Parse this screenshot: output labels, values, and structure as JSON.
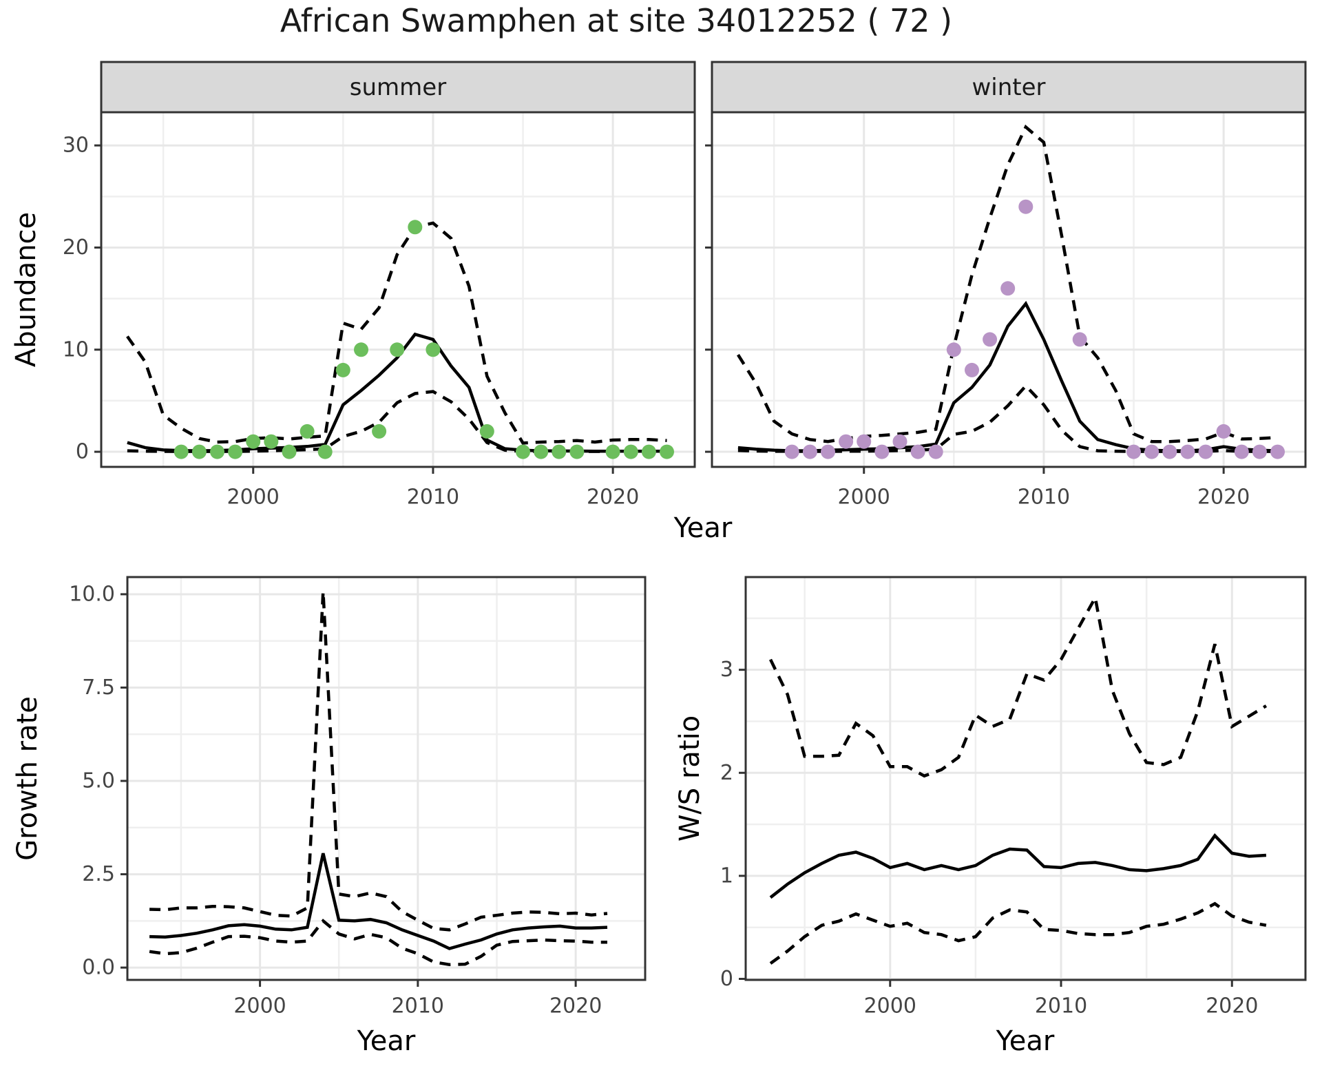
{
  "title": "African Swamphen at site 34012252 ( 72 )",
  "colors": {
    "summer_point": "#6CBE5C",
    "winter_point": "#B894C6",
    "line": "#000000",
    "grid_major": "#E7E7E7",
    "grid_minor": "#EFEFEF",
    "panel_border": "#333333",
    "strip_fill": "#D9D9D9",
    "tick_label": "#444444",
    "axis_title": "#000000"
  },
  "chart_data": [
    {
      "id": "abundance_summer",
      "type": "line",
      "strip_label": "summer",
      "xlabel": "Year",
      "ylabel": "Abundance",
      "x": [
        1993,
        1994,
        1995,
        1996,
        1997,
        1998,
        1999,
        2000,
        2001,
        2002,
        2003,
        2004,
        2005,
        2006,
        2007,
        2008,
        2009,
        2010,
        2011,
        2012,
        2013,
        2014,
        2015,
        2016,
        2017,
        2018,
        2019,
        2020,
        2021,
        2022,
        2023
      ],
      "series": [
        {
          "name": "fit",
          "style": "solid",
          "values": [
            0.9,
            0.4,
            0.18,
            0.12,
            0.1,
            0.12,
            0.18,
            0.3,
            0.36,
            0.42,
            0.52,
            0.72,
            4.6,
            6.0,
            7.5,
            9.2,
            11.5,
            11.0,
            8.4,
            6.3,
            1.15,
            0.3,
            0.15,
            0.1,
            0.08,
            0.07,
            0.06,
            0.06,
            0.06,
            0.06,
            0.06
          ]
        },
        {
          "name": "ci_upper",
          "style": "dashed",
          "values": [
            11.3,
            8.8,
            3.6,
            2.3,
            1.3,
            0.95,
            1.0,
            1.3,
            1.38,
            1.25,
            1.42,
            1.55,
            12.6,
            12.0,
            14.1,
            19.3,
            22.0,
            22.4,
            20.9,
            16.2,
            7.4,
            3.8,
            0.85,
            0.95,
            1.0,
            1.1,
            0.95,
            1.15,
            1.2,
            1.2,
            1.1
          ]
        },
        {
          "name": "ci_lower",
          "style": "dashed",
          "values": [
            0.1,
            0.06,
            0.04,
            0.03,
            0.03,
            0.03,
            0.04,
            0.06,
            0.1,
            0.15,
            0.2,
            0.3,
            1.5,
            2.0,
            2.9,
            4.8,
            5.7,
            5.9,
            4.9,
            3.2,
            0.9,
            0.15,
            0.04,
            0.03,
            0.03,
            0.03,
            0.03,
            0.03,
            0.03,
            0.03,
            0.03
          ]
        }
      ],
      "points": {
        "color_key": "summer_point",
        "years": [
          1996,
          1997,
          1998,
          1999,
          2000,
          2001,
          2002,
          2003,
          2004,
          2005,
          2006,
          2007,
          2008,
          2009,
          2010,
          2013,
          2015,
          2016,
          2017,
          2018,
          2020,
          2021,
          2022,
          2023
        ],
        "values": [
          0,
          0,
          0,
          0,
          1,
          1,
          0,
          2,
          0,
          8,
          10,
          2,
          10,
          22,
          10,
          2,
          0,
          0,
          0,
          0,
          0,
          0,
          0,
          0
        ]
      },
      "xlim": [
        1991.55,
        2024.55
      ],
      "ylim": [
        -1.48,
        33.25
      ],
      "xticks": {
        "values": [
          2000,
          2010,
          2020
        ],
        "labels": [
          "2000",
          "2010",
          "2020"
        ]
      },
      "yticks": {
        "values": [
          0,
          10,
          20,
          30
        ],
        "labels": [
          "0",
          "10",
          "20",
          "30"
        ]
      },
      "xminor": [
        1995,
        2005,
        2015
      ],
      "yminor": [
        5,
        15,
        25
      ]
    },
    {
      "id": "abundance_winter",
      "type": "line",
      "strip_label": "winter",
      "xlabel": "Year",
      "ylabel": "Abundance",
      "x": [
        1993,
        1994,
        1995,
        1996,
        1997,
        1998,
        1999,
        2000,
        2001,
        2002,
        2003,
        2004,
        2005,
        2006,
        2007,
        2008,
        2009,
        2010,
        2011,
        2012,
        2013,
        2014,
        2015,
        2016,
        2017,
        2018,
        2019,
        2020,
        2021,
        2022,
        2023
      ],
      "series": [
        {
          "name": "fit",
          "style": "solid",
          "values": [
            0.4,
            0.25,
            0.15,
            0.1,
            0.1,
            0.15,
            0.2,
            0.25,
            0.3,
            0.4,
            0.5,
            0.75,
            4.8,
            6.3,
            8.5,
            12.3,
            14.5,
            11.0,
            6.9,
            3.0,
            1.2,
            0.7,
            0.3,
            0.15,
            0.1,
            0.1,
            0.2,
            0.5,
            0.25,
            0.15,
            0.1
          ]
        },
        {
          "name": "ci_upper",
          "style": "dashed",
          "values": [
            9.5,
            6.7,
            3.0,
            1.75,
            1.2,
            1.0,
            1.3,
            1.5,
            1.6,
            1.75,
            1.9,
            2.2,
            10.3,
            17.3,
            22.9,
            28.1,
            31.8,
            30.3,
            21.1,
            11.3,
            9.2,
            6.0,
            1.75,
            1.0,
            1.0,
            1.1,
            1.25,
            1.9,
            1.25,
            1.3,
            1.4
          ]
        },
        {
          "name": "ci_lower",
          "style": "dashed",
          "values": [
            0.12,
            0.07,
            0.05,
            0.04,
            0.04,
            0.04,
            0.05,
            0.06,
            0.08,
            0.12,
            0.16,
            0.25,
            1.7,
            2.0,
            2.9,
            4.5,
            6.45,
            4.6,
            2.1,
            0.5,
            0.1,
            0.05,
            0.03,
            0.03,
            0.03,
            0.03,
            0.04,
            0.12,
            0.04,
            0.03,
            0.03
          ]
        }
      ],
      "points": {
        "color_key": "winter_point",
        "years": [
          1996,
          1997,
          1998,
          1999,
          2000,
          2001,
          2002,
          2003,
          2004,
          2005,
          2006,
          2007,
          2008,
          2009,
          2012,
          2015,
          2016,
          2017,
          2018,
          2019,
          2020,
          2021,
          2022,
          2023
        ],
        "values": [
          0,
          0,
          0,
          1,
          1,
          0,
          1,
          0,
          0,
          10,
          8,
          11,
          16,
          24,
          11,
          0,
          0,
          0,
          0,
          0,
          2,
          0,
          0,
          0
        ]
      },
      "xlim": [
        1991.55,
        2024.55
      ],
      "ylim": [
        -1.48,
        33.25
      ],
      "xticks": {
        "values": [
          2000,
          2010,
          2020
        ],
        "labels": [
          "2000",
          "2010",
          "2020"
        ]
      },
      "yticks": {
        "values": [
          0,
          10,
          20,
          30
        ],
        "labels": [
          "0",
          "10",
          "20",
          "30"
        ]
      },
      "xminor": [
        1995,
        2005,
        2015
      ],
      "yminor": [
        5,
        15,
        25
      ]
    },
    {
      "id": "growth_rate",
      "type": "line",
      "strip_label": "",
      "xlabel": "Year",
      "ylabel": "Growth rate",
      "x": [
        1993,
        1994,
        1995,
        1996,
        1997,
        1998,
        1999,
        2000,
        2001,
        2002,
        2003,
        2004,
        2005,
        2006,
        2007,
        2008,
        2009,
        2010,
        2011,
        2012,
        2013,
        2014,
        2015,
        2016,
        2017,
        2018,
        2019,
        2020,
        2021,
        2022
      ],
      "series": [
        {
          "name": "fit",
          "style": "solid",
          "values": [
            0.83,
            0.82,
            0.86,
            0.92,
            1.01,
            1.12,
            1.15,
            1.11,
            1.03,
            1.01,
            1.08,
            3.06,
            1.27,
            1.25,
            1.29,
            1.2,
            1.01,
            0.86,
            0.71,
            0.51,
            0.63,
            0.74,
            0.9,
            1.01,
            1.06,
            1.09,
            1.11,
            1.06,
            1.06,
            1.08
          ]
        },
        {
          "name": "ci_upper",
          "style": "dashed",
          "values": [
            1.56,
            1.55,
            1.6,
            1.6,
            1.64,
            1.63,
            1.6,
            1.5,
            1.4,
            1.38,
            1.6,
            10.07,
            1.97,
            1.9,
            2.0,
            1.9,
            1.5,
            1.27,
            1.05,
            1.01,
            1.17,
            1.35,
            1.4,
            1.46,
            1.49,
            1.48,
            1.44,
            1.46,
            1.41,
            1.45
          ]
        },
        {
          "name": "ci_lower",
          "style": "dashed",
          "values": [
            0.43,
            0.37,
            0.4,
            0.52,
            0.68,
            0.83,
            0.84,
            0.8,
            0.71,
            0.68,
            0.71,
            1.25,
            0.9,
            0.77,
            0.89,
            0.8,
            0.52,
            0.37,
            0.15,
            0.08,
            0.09,
            0.3,
            0.6,
            0.7,
            0.72,
            0.74,
            0.72,
            0.71,
            0.68,
            0.68
          ]
        }
      ],
      "points": null,
      "xlim": [
        1991.6,
        2024.4
      ],
      "ylim": [
        -0.33,
        10.46
      ],
      "xticks": {
        "values": [
          2000,
          2010,
          2020
        ],
        "labels": [
          "2000",
          "2010",
          "2020"
        ]
      },
      "yticks": {
        "values": [
          0,
          2.5,
          5,
          7.5,
          10
        ],
        "labels": [
          "0.0",
          "2.5",
          "5.0",
          "7.5",
          "10.0"
        ]
      },
      "xminor": [
        1995,
        2005,
        2015
      ],
      "yminor": [
        1.25,
        3.75,
        6.25,
        8.75
      ]
    },
    {
      "id": "ws_ratio",
      "type": "line",
      "strip_label": "",
      "xlabel": "Year",
      "ylabel": "W/S ratio",
      "x": [
        1993,
        1994,
        1995,
        1996,
        1997,
        1998,
        1999,
        2000,
        2001,
        2002,
        2003,
        2004,
        2005,
        2006,
        2007,
        2008,
        2009,
        2010,
        2011,
        2012,
        2013,
        2014,
        2015,
        2016,
        2017,
        2018,
        2019,
        2020,
        2021,
        2022
      ],
      "series": [
        {
          "name": "fit",
          "style": "solid",
          "values": [
            0.79,
            0.92,
            1.03,
            1.12,
            1.2,
            1.23,
            1.17,
            1.08,
            1.12,
            1.06,
            1.1,
            1.06,
            1.1,
            1.2,
            1.26,
            1.25,
            1.09,
            1.08,
            1.12,
            1.13,
            1.1,
            1.06,
            1.05,
            1.07,
            1.1,
            1.16,
            1.39,
            1.22,
            1.19,
            1.2
          ]
        },
        {
          "name": "ci_upper",
          "style": "dashed",
          "values": [
            3.1,
            2.76,
            2.16,
            2.16,
            2.17,
            2.48,
            2.36,
            2.06,
            2.06,
            1.97,
            2.03,
            2.15,
            2.56,
            2.45,
            2.52,
            2.96,
            2.9,
            3.1,
            3.4,
            3.7,
            2.8,
            2.38,
            2.1,
            2.08,
            2.15,
            2.6,
            3.25,
            2.45,
            2.55,
            2.65
          ]
        },
        {
          "name": "ci_lower",
          "style": "dashed",
          "values": [
            0.15,
            0.27,
            0.41,
            0.52,
            0.56,
            0.63,
            0.57,
            0.51,
            0.54,
            0.45,
            0.43,
            0.37,
            0.41,
            0.59,
            0.67,
            0.65,
            0.48,
            0.47,
            0.44,
            0.43,
            0.43,
            0.45,
            0.51,
            0.53,
            0.58,
            0.64,
            0.73,
            0.61,
            0.55,
            0.52
          ]
        }
      ],
      "points": null,
      "xlim": [
        1991.55,
        2024.3
      ],
      "ylim": [
        -0.01,
        3.9
      ],
      "xticks": {
        "values": [
          2000,
          2010,
          2020
        ],
        "labels": [
          "2000",
          "2010",
          "2020"
        ]
      },
      "yticks": {
        "values": [
          0,
          1,
          2,
          3
        ],
        "labels": [
          "0",
          "1",
          "2",
          "3"
        ]
      },
      "xminor": [
        1995,
        2005,
        2015
      ],
      "yminor": [
        0.5,
        1.5,
        2.5,
        3.5
      ]
    }
  ]
}
